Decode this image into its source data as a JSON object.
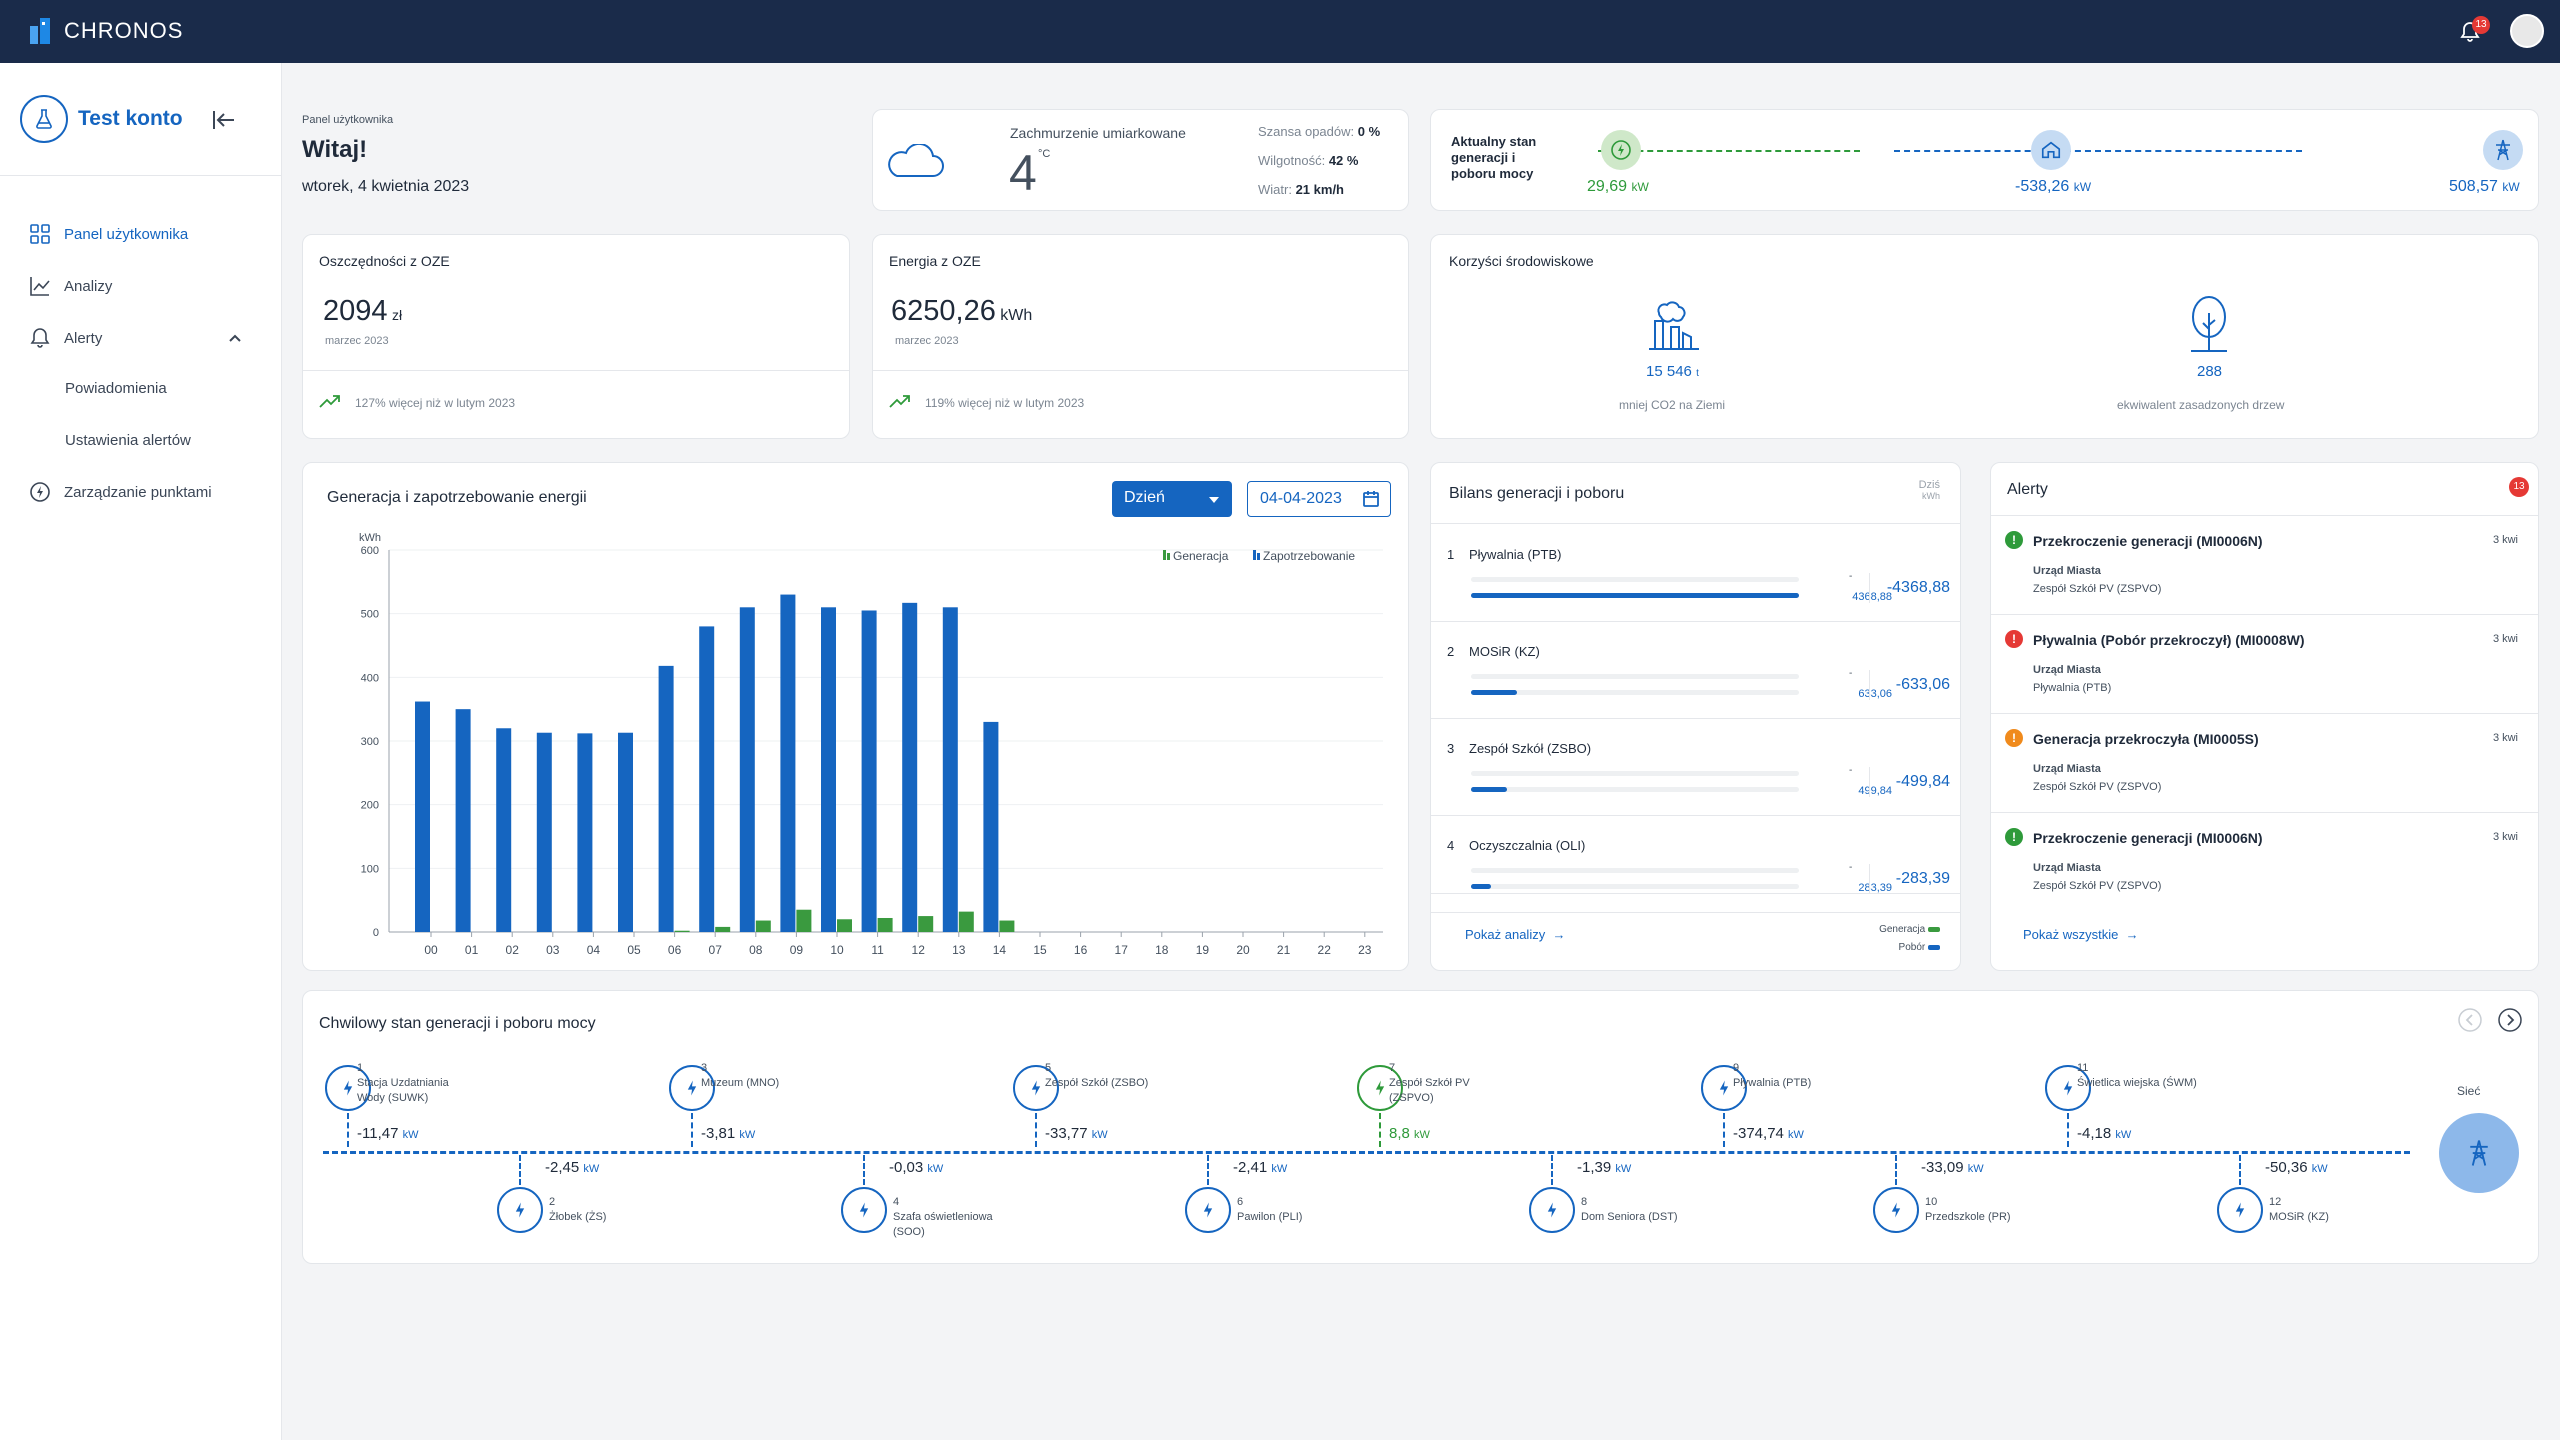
{
  "app": {
    "name": "CHRONOS",
    "notif_count": "13"
  },
  "sidebar": {
    "account": "Test konto",
    "items": [
      {
        "label": "Panel użytkownika",
        "icon": "dashboard-icon",
        "active": true
      },
      {
        "label": "Analizy",
        "icon": "chart-line-icon"
      },
      {
        "label": "Alerty",
        "icon": "bell-icon"
      },
      {
        "label": "Powiadomienia",
        "sub": true
      },
      {
        "label": "Ustawienia alertów",
        "sub": true
      },
      {
        "label": "Zarządzanie punktami",
        "icon": "bolt-icon"
      }
    ]
  },
  "header": {
    "breadcrumb": "Panel użytkownika",
    "greeting": "Witaj!",
    "date": "wtorek, 4 kwietnia 2023"
  },
  "weather": {
    "desc": "Zachmurzenie umiarkowane",
    "temp": "4",
    "unit": "°C",
    "rain_label": "Szansa opadów:",
    "rain": "0 %",
    "humidity_label": "Wilgotność:",
    "humidity": "42 %",
    "wind_label": "Wiatr:",
    "wind": "21 km/h"
  },
  "status": {
    "title": "Aktualny stan generacji i poboru mocy",
    "gen": "29,69",
    "home": "-538,26",
    "grid": "508,57",
    "unit": "kW"
  },
  "savings": {
    "title": "Oszczędności z OZE",
    "value": "2094",
    "unit": "zł",
    "period": "marzec 2023",
    "trend": "127% więcej niż w lutym 2023"
  },
  "energy": {
    "title": "Energia z OZE",
    "value": "6250,26",
    "unit": "kWh",
    "period": "marzec 2023",
    "trend": "119% więcej niż w lutym 2023"
  },
  "env": {
    "title": "Korzyści środowiskowe",
    "co2": "15 546",
    "co2_unit": "t",
    "co2_label": "mniej CO2 na Ziemi",
    "trees": "288",
    "trees_label": "ekwiwalent zasadzonych drzew"
  },
  "chart": {
    "title": "Generacja i zapotrzebowanie energii",
    "period": "Dzień",
    "date": "04-04-2023"
  },
  "chart_data": {
    "type": "bar",
    "ylabel": "kWh",
    "ylim": [
      0,
      600
    ],
    "yticks": [
      0,
      100,
      200,
      300,
      400,
      500,
      600
    ],
    "categories": [
      "00",
      "01",
      "02",
      "03",
      "04",
      "05",
      "06",
      "07",
      "08",
      "09",
      "10",
      "11",
      "12",
      "13",
      "14",
      "15",
      "16",
      "17",
      "18",
      "19",
      "20",
      "21",
      "22",
      "23"
    ],
    "series": [
      {
        "name": "Generacja",
        "color": "#3a9a3f",
        "values": [
          0,
          0,
          0,
          0,
          0,
          0,
          2,
          8,
          18,
          35,
          20,
          22,
          25,
          32,
          18,
          0,
          0,
          0,
          0,
          0,
          0,
          0,
          0,
          0
        ]
      },
      {
        "name": "Zapotrzebowanie",
        "color": "#1565c0",
        "values": [
          362,
          350,
          320,
          313,
          312,
          313,
          418,
          480,
          510,
          530,
          510,
          505,
          517,
          510,
          330,
          0,
          0,
          0,
          0,
          0,
          0,
          0,
          0,
          0
        ]
      }
    ]
  },
  "balance": {
    "title": "Bilans generacji i poboru",
    "today": "Dziś",
    "today_unit": "kWh",
    "rows": [
      {
        "n": "1",
        "name": "Pływalnia (PTB)",
        "small": "4368,88",
        "value": "-4368,88",
        "pct": 100
      },
      {
        "n": "2",
        "name": "MOSiR (KZ)",
        "small": "633,06",
        "value": "-633,06",
        "pct": 14
      },
      {
        "n": "3",
        "name": "Zespół Szkół (ZSBO)",
        "small": "499,84",
        "value": "-499,84",
        "pct": 11
      },
      {
        "n": "4",
        "name": "Oczyszczalnia (OLI)",
        "small": "283,39",
        "value": "-283,39",
        "pct": 6
      }
    ],
    "link": "Pokaż analizy",
    "legend_gen": "Generacja",
    "legend_pob": "Pobór"
  },
  "alerts": {
    "title": "Alerty",
    "count": "13",
    "items": [
      {
        "title": "Przekroczenie generacji (MI0006N)",
        "time": "3 kwi",
        "l1": "Urząd Miasta",
        "l2": "Zespół Szkół PV (ZSPVO)",
        "color": "#2e9a3a"
      },
      {
        "title": "Pływalnia (Pobór przekroczył) (MI0008W)",
        "time": "3 kwi",
        "l1": "Urząd Miasta",
        "l2": "Pływalnia (PTB)",
        "color": "#e53935"
      },
      {
        "title": "Generacja przekroczyła (MI0005S)",
        "time": "3 kwi",
        "l1": "Urząd Miasta",
        "l2": "Zespół Szkół PV (ZSPVO)",
        "color": "#f08a1c"
      },
      {
        "title": "Przekroczenie generacji (MI0006N)",
        "time": "3 kwi",
        "l1": "Urząd Miasta",
        "l2": "Zespół Szkół PV (ZSPVO)",
        "color": "#2e9a3a"
      }
    ],
    "link": "Pokaż wszystkie"
  },
  "flow": {
    "title": "Chwilowy stan generacji i poboru mocy",
    "grid_label": "Sieć",
    "unit": "kW",
    "top": [
      {
        "n": "1",
        "name": "Stacja Uzdatniania Wody (SUWK)",
        "v": "-11,47"
      },
      {
        "n": "3",
        "name": "Muzeum (MNO)",
        "v": "-3,81"
      },
      {
        "n": "5",
        "name": "Zespół Szkół (ZSBO)",
        "v": "-33,77"
      },
      {
        "n": "7",
        "name": "Zespół Szkół PV (ZSPVO)",
        "v": "8,8",
        "green": true
      },
      {
        "n": "9",
        "name": "Pływalnia (PTB)",
        "v": "-374,74"
      },
      {
        "n": "11",
        "name": "Świetlica wiejska (ŚWM)",
        "v": "-4,18"
      }
    ],
    "bottom": [
      {
        "n": "2",
        "name": "Żłobek (ŻS)",
        "v": "-2,45"
      },
      {
        "n": "4",
        "name": "Szafa oświetleniowa (SOO)",
        "v": "-0,03"
      },
      {
        "n": "6",
        "name": "Pawilon (PLI)",
        "v": "-2,41"
      },
      {
        "n": "8",
        "name": "Dom Seniora (DST)",
        "v": "-1,39"
      },
      {
        "n": "10",
        "name": "Przedszkole (PR)",
        "v": "-33,09"
      },
      {
        "n": "12",
        "name": "MOSiR (KZ)",
        "v": "-50,36"
      }
    ]
  }
}
